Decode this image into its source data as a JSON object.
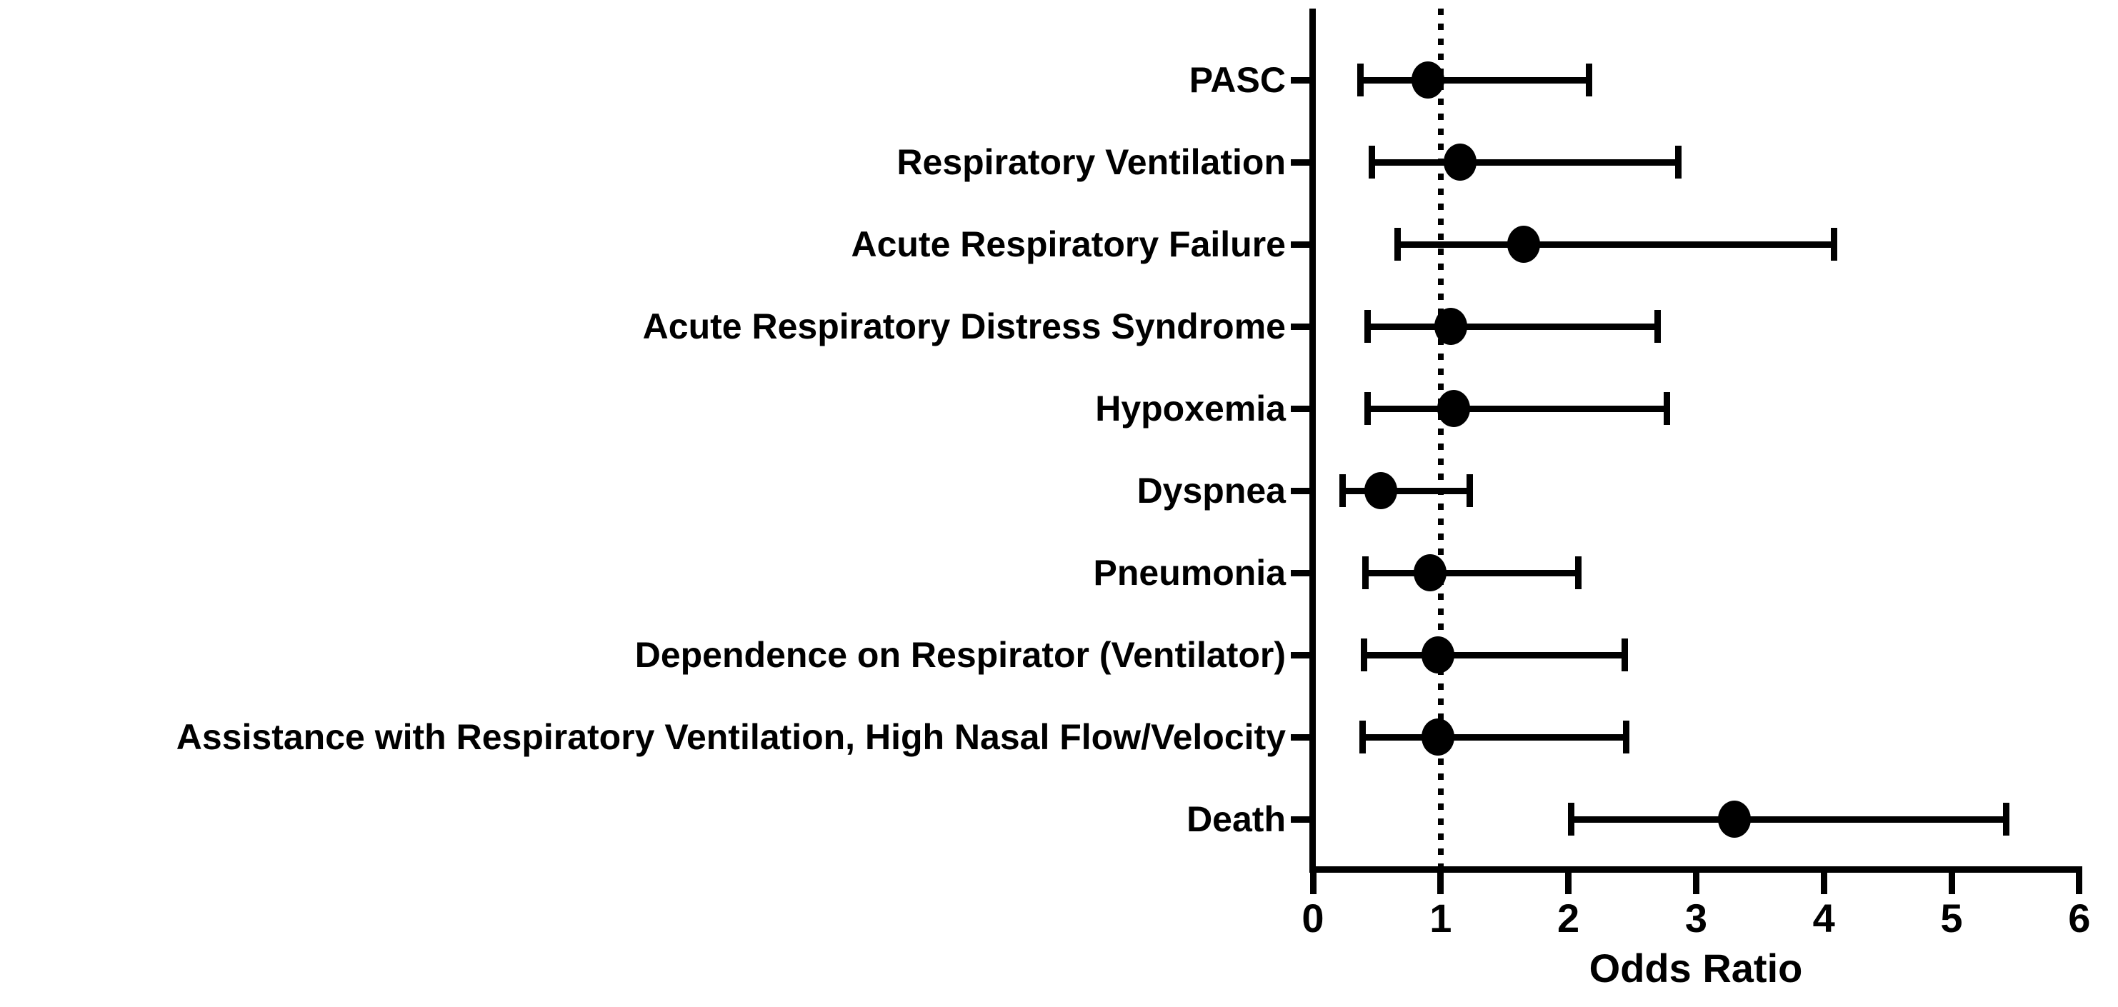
{
  "figure": {
    "background_color": "#ffffff",
    "ink_color": "#000000"
  },
  "chart_data": {
    "type": "scatter",
    "subtype": "forest-plot",
    "title": "",
    "xlabel": "Odds Ratio",
    "ylabel": "",
    "xlim": [
      0,
      6
    ],
    "xticks": [
      "0",
      "1",
      "2",
      "3",
      "4",
      "5",
      "6"
    ],
    "grid": false,
    "legend": false,
    "reference_line_x": 1,
    "reference_line_style": "dotted",
    "marker": {
      "shape": "circle",
      "color": "#000000"
    },
    "points": [
      {
        "label": "PASC",
        "odds_ratio": 0.9,
        "ci_low": 0.37,
        "ci_high": 2.16
      },
      {
        "label": "Respiratory Ventilation",
        "odds_ratio": 1.15,
        "ci_low": 0.46,
        "ci_high": 2.86
      },
      {
        "label": "Acute Respiratory Failure",
        "odds_ratio": 1.65,
        "ci_low": 0.66,
        "ci_high": 4.08
      },
      {
        "label": "Acute Respiratory Distress Syndrome",
        "odds_ratio": 1.08,
        "ci_low": 0.43,
        "ci_high": 2.7
      },
      {
        "label": "Hypoxemia",
        "odds_ratio": 1.1,
        "ci_low": 0.43,
        "ci_high": 2.77
      },
      {
        "label": "Dyspnea",
        "odds_ratio": 0.53,
        "ci_low": 0.23,
        "ci_high": 1.23
      },
      {
        "label": "Pneumonia",
        "odds_ratio": 0.92,
        "ci_low": 0.41,
        "ci_high": 2.08
      },
      {
        "label": "Dependence on Respirator (Ventilator)",
        "odds_ratio": 0.98,
        "ci_low": 0.4,
        "ci_high": 2.44
      },
      {
        "label": "Assistance with Respiratory Ventilation, High Nasal Flow/Velocity",
        "odds_ratio": 0.98,
        "ci_low": 0.39,
        "ci_high": 2.45
      },
      {
        "label": "Death",
        "odds_ratio": 3.3,
        "ci_low": 2.02,
        "ci_high": 5.43
      }
    ]
  }
}
